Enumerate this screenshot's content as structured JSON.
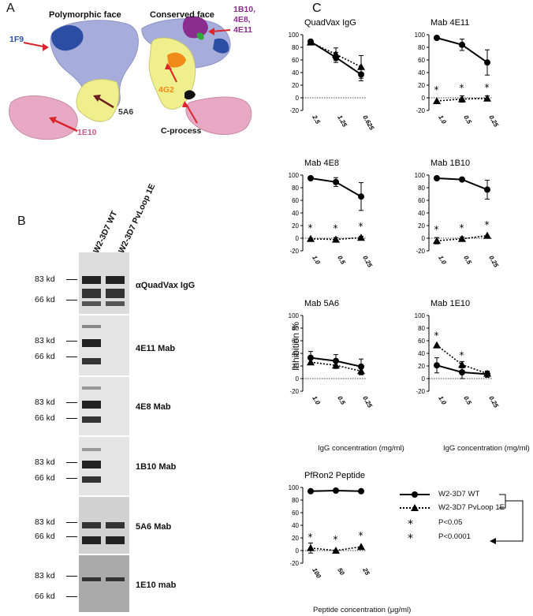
{
  "panels": {
    "A": "A",
    "B": "B",
    "C": "C"
  },
  "panelA": {
    "face_left": "Polymorphic face",
    "face_right": "Conserved face",
    "labels": {
      "f1f9": "1F9",
      "f1e10": "1E10",
      "f5a6": "5A6",
      "f4g2": "4G2",
      "cprocess": "C-process",
      "f1b10_l1": "1B10,",
      "f1b10_l2": "4E8,",
      "f1b10_l3": "4E11"
    },
    "colors": {
      "lavender": "#a7addb",
      "yellow": "#f0ef8e",
      "pink": "#e7a9c4",
      "blue": "#2b4ea4",
      "purple": "#8a2d8f",
      "orange": "#f08a18",
      "red": "#d9262c"
    }
  },
  "panelB": {
    "lanes": [
      "W2-3D7 WT",
      "W2-3D7 PvLoop 1E"
    ],
    "blots": [
      {
        "antibody": "αQuadVax IgG",
        "mw_top": "83 kd",
        "mw_bottom": "66 kd"
      },
      {
        "antibody": "4E11 Mab",
        "mw_top": "83 kd",
        "mw_bottom": "66 kd"
      },
      {
        "antibody": "4E8 Mab",
        "mw_top": "83 kd",
        "mw_bottom": "66 kd"
      },
      {
        "antibody": "1B10 Mab",
        "mw_top": "83 kd",
        "mw_bottom": "66 kd"
      },
      {
        "antibody": "5A6 Mab",
        "mw_top": "83 kd",
        "mw_bottom": "66 kd"
      },
      {
        "antibody": "1E10 mab",
        "mw_top": "83 kd",
        "mw_bottom": "66 kd"
      }
    ]
  },
  "panelC": {
    "ylabel": "Inhibition %",
    "xlabel_igg": "IgG concentration (mg/ml)",
    "xlabel_pep": "Peptide concentration (μg/ml)",
    "legend": {
      "wt": "W2-3D7 WT",
      "mut": "W2-3D7 PvLoop 1E",
      "p05": "P<0.05",
      "p0001": "P<0.0001"
    }
  },
  "chart_data": [
    {
      "type": "line",
      "title": "QuadVax IgG",
      "categories": [
        "2.5",
        "1.25",
        "0.625"
      ],
      "ylim": [
        -20,
        100
      ],
      "yticks": [
        "-20",
        "0",
        "20",
        "40",
        "60",
        "80",
        "100"
      ],
      "series": [
        {
          "name": "W2-3D7 WT",
          "values": [
            89,
            64,
            37
          ],
          "err": [
            3,
            8,
            10
          ]
        },
        {
          "name": "W2-3D7 PvLoop 1E",
          "values": [
            88,
            69,
            49
          ],
          "err": [
            3,
            10,
            18
          ]
        }
      ],
      "stars": []
    },
    {
      "type": "line",
      "title": "Mab 4E11",
      "categories": [
        "1.0",
        "0.5",
        "0.25"
      ],
      "ylim": [
        -20,
        100
      ],
      "yticks": [
        "-20",
        "0",
        "20",
        "40",
        "60",
        "80",
        "100"
      ],
      "series": [
        {
          "name": "W2-3D7 WT",
          "values": [
            95,
            84,
            56
          ],
          "err": [
            0,
            9,
            20
          ]
        },
        {
          "name": "W2-3D7 PvLoop 1E",
          "values": [
            -5,
            -2,
            -1
          ],
          "err": [
            0,
            5,
            4
          ]
        }
      ],
      "stars": [
        0,
        1,
        2
      ]
    },
    {
      "type": "line",
      "title": "Mab 4E8",
      "categories": [
        "1.0",
        "0.5",
        "0.25"
      ],
      "ylim": [
        -20,
        100
      ],
      "yticks": [
        "-20",
        "0",
        "20",
        "40",
        "60",
        "80",
        "100"
      ],
      "series": [
        {
          "name": "W2-3D7 WT",
          "values": [
            95,
            89,
            66
          ],
          "err": [
            0,
            7,
            22
          ]
        },
        {
          "name": "W2-3D7 PvLoop 1E",
          "values": [
            -1,
            -2,
            1
          ],
          "err": [
            0,
            3,
            2
          ]
        }
      ],
      "stars": [
        0,
        1,
        2
      ]
    },
    {
      "type": "line",
      "title": "Mab 1B10",
      "categories": [
        "1.0",
        "0.5",
        "0.25"
      ],
      "ylim": [
        -20,
        100
      ],
      "yticks": [
        "-20",
        "0",
        "20",
        "40",
        "60",
        "80",
        "100"
      ],
      "series": [
        {
          "name": "W2-3D7 WT",
          "values": [
            95,
            93,
            77
          ],
          "err": [
            0,
            0,
            15
          ]
        },
        {
          "name": "W2-3D7 PvLoop 1E",
          "values": [
            -4,
            -1,
            4
          ],
          "err": [
            5,
            3,
            0
          ]
        }
      ],
      "stars": [
        0,
        1,
        2
      ]
    },
    {
      "type": "line",
      "title": "Mab 5A6",
      "categories": [
        "1.0",
        "0.5",
        "0.25"
      ],
      "ylim": [
        -20,
        100
      ],
      "yticks": [
        "-20",
        "0",
        "20",
        "40",
        "60",
        "80",
        "100"
      ],
      "series": [
        {
          "name": "W2-3D7 WT",
          "values": [
            33,
            28,
            19
          ],
          "err": [
            10,
            10,
            12
          ]
        },
        {
          "name": "W2-3D7 PvLoop 1E",
          "values": [
            26,
            21,
            12
          ],
          "err": [
            0,
            5,
            6
          ]
        }
      ],
      "stars": []
    },
    {
      "type": "line",
      "title": "Mab 1E10",
      "categories": [
        "1.0",
        "0.5",
        "0.25"
      ],
      "ylim": [
        -20,
        100
      ],
      "yticks": [
        "-20",
        "0",
        "20",
        "40",
        "60",
        "80",
        "100"
      ],
      "series": [
        {
          "name": "W2-3D7 WT",
          "values": [
            21,
            10,
            7
          ],
          "err": [
            12,
            10,
            5
          ]
        },
        {
          "name": "W2-3D7 PvLoop 1E",
          "values": [
            53,
            22,
            8
          ],
          "err": [
            0,
            5,
            3
          ]
        }
      ],
      "stars": [
        0,
        1
      ]
    },
    {
      "type": "line",
      "title": "PfRon2 Peptide",
      "categories": [
        "100",
        "50",
        "25"
      ],
      "ylim": [
        -20,
        100
      ],
      "yticks": [
        "-20",
        "0",
        "20",
        "40",
        "60",
        "80",
        "100"
      ],
      "series": [
        {
          "name": "W2-3D7 WT",
          "values": [
            94,
            95,
            94
          ],
          "err": [
            0,
            0,
            0
          ]
        },
        {
          "name": "W2-3D7 PvLoop 1E",
          "values": [
            4,
            0,
            6
          ],
          "err": [
            8,
            0,
            0
          ]
        }
      ],
      "stars": [
        0,
        1,
        2
      ]
    }
  ]
}
